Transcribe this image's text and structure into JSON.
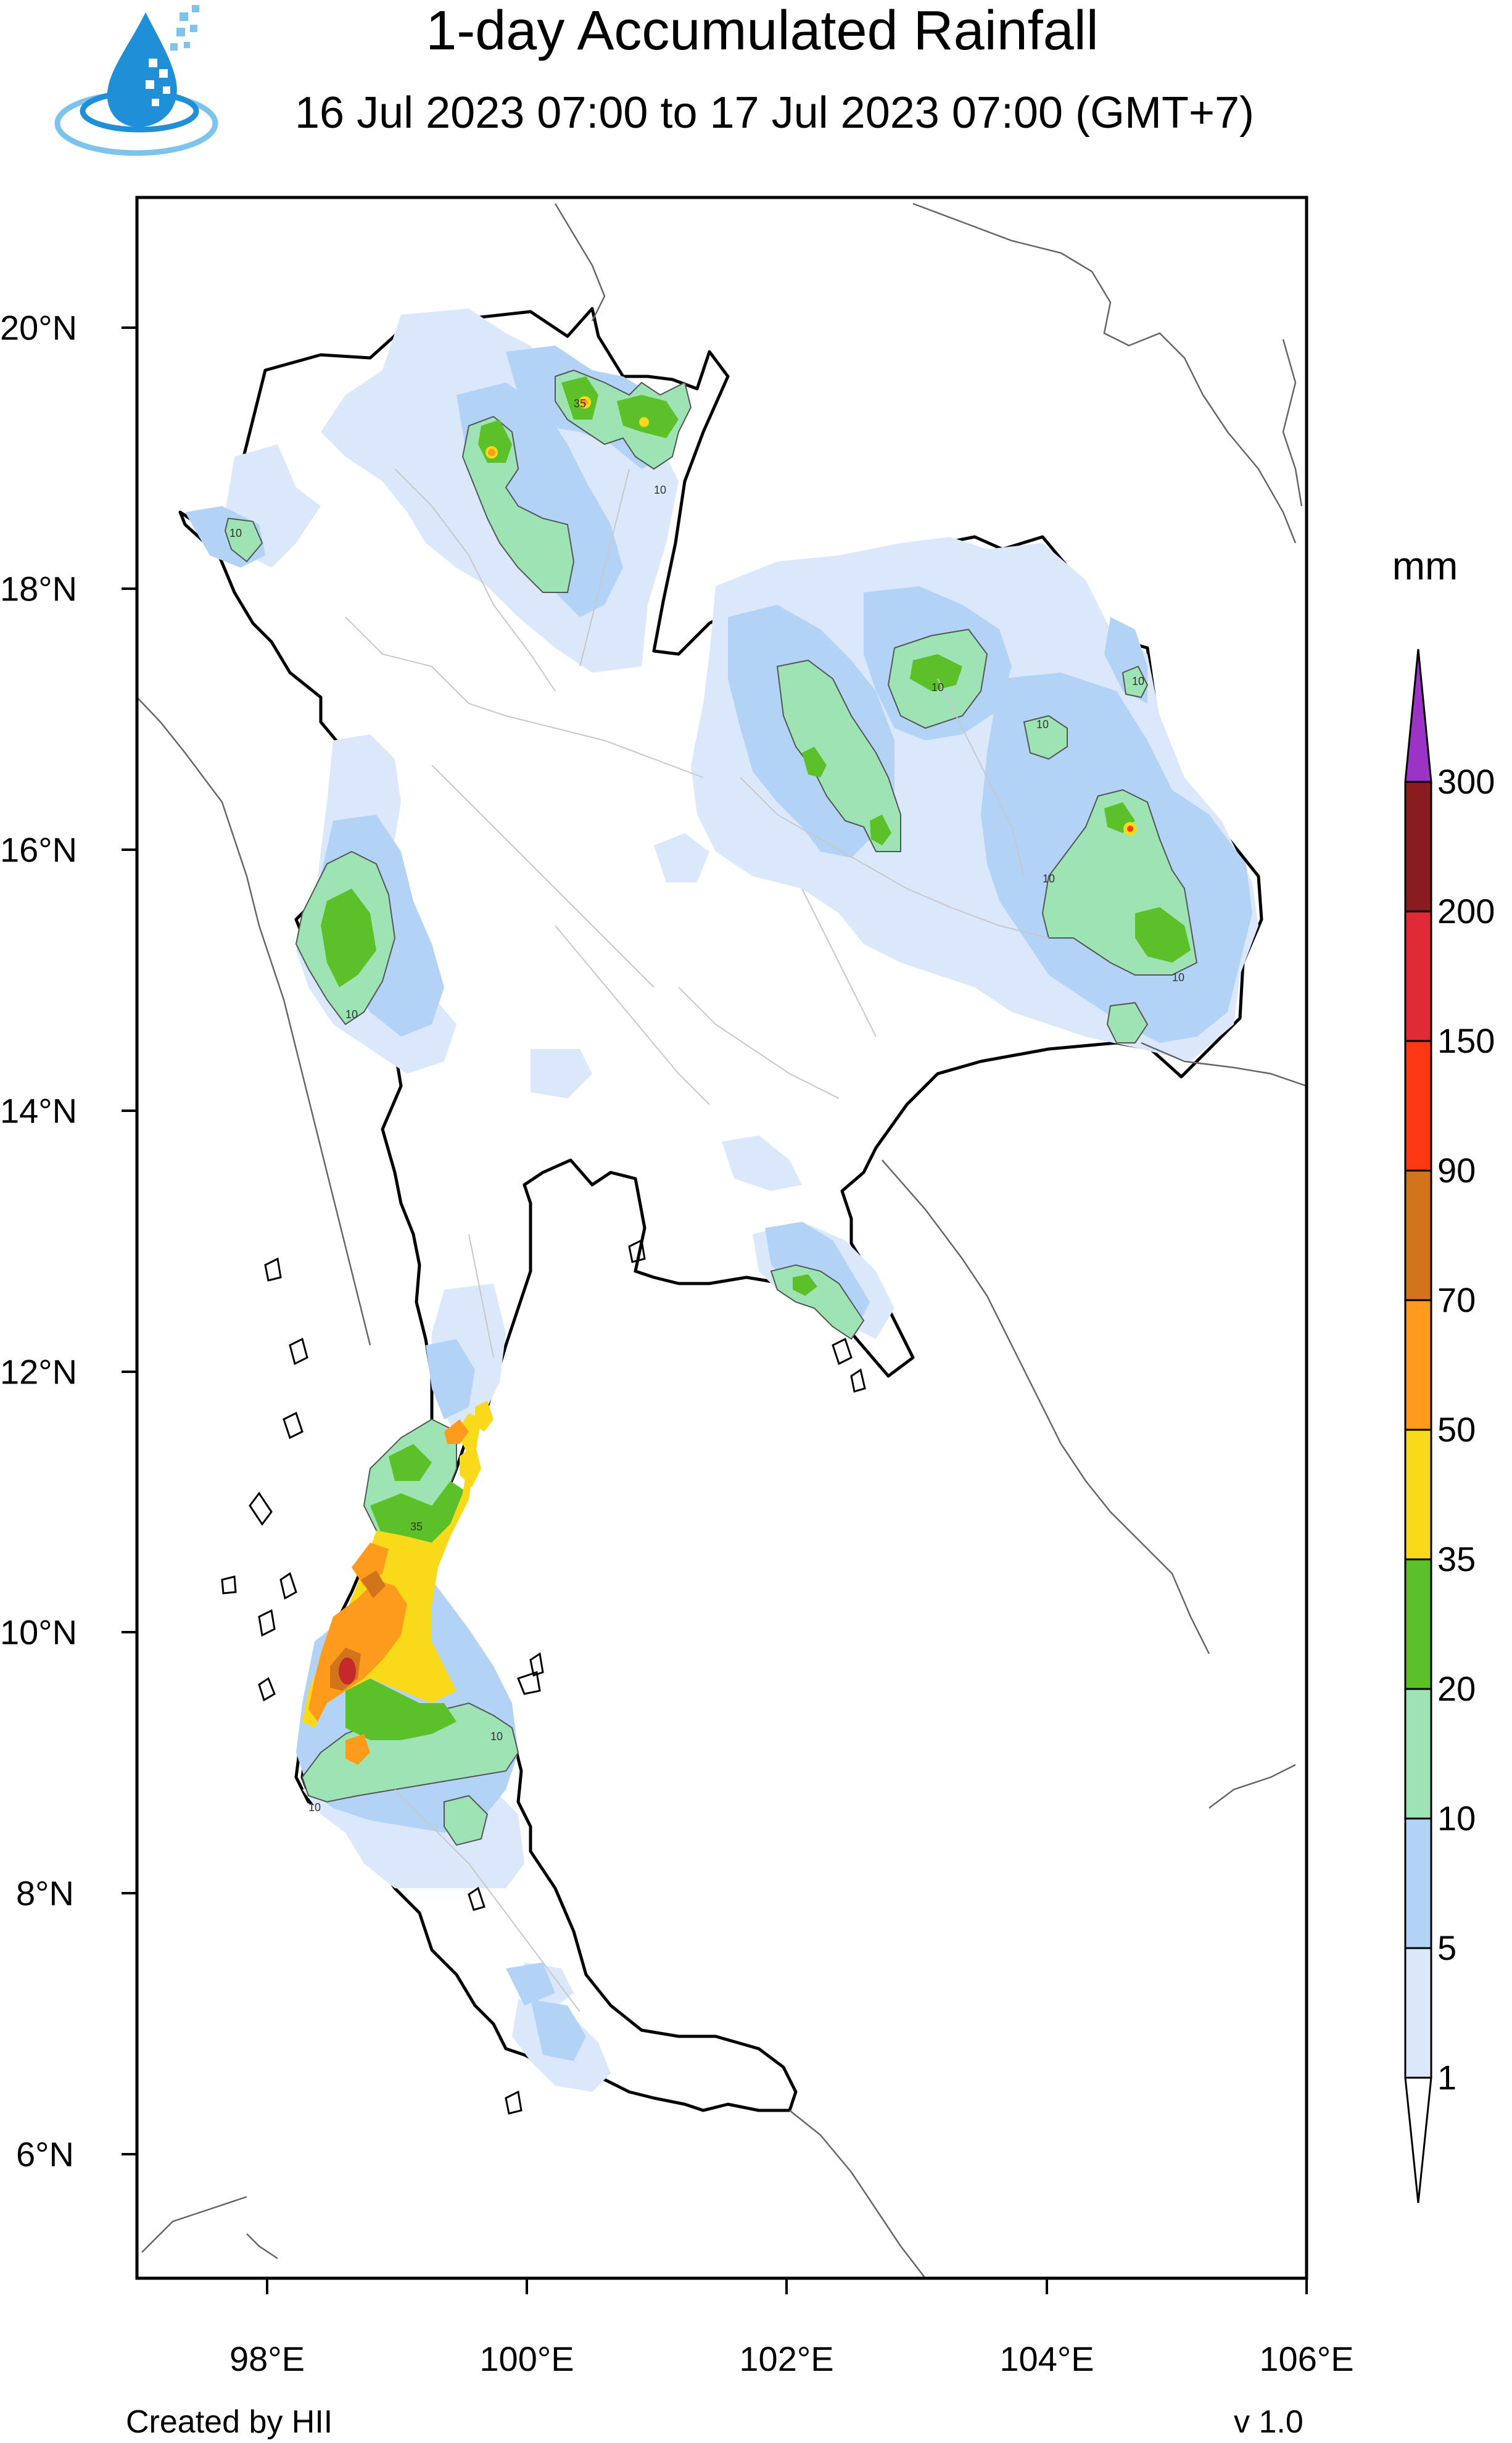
{
  "title": "1-day Accumulated Rainfall",
  "subtitle": "16 Jul 2023 07:00 to 17 Jul 2023 07:00 (GMT+7)",
  "logo": {
    "icon": "water-drop-icon",
    "colors": [
      "#1f8fd8",
      "#0b5fa8",
      "#7cc3ee"
    ]
  },
  "colorbar": {
    "unit": "mm",
    "levels": [
      "1",
      "5",
      "10",
      "20",
      "35",
      "50",
      "70",
      "90",
      "150",
      "200",
      "300"
    ],
    "colors": [
      "#ffffff",
      "#dbe8fb",
      "#b2d2f6",
      "#9ee3b3",
      "#5cc128",
      "#f8da1a",
      "#fe9b1c",
      "#d2741c",
      "#ff3814",
      "#e02a36",
      "#8a1c20",
      "#9b34c6"
    ]
  },
  "axes": {
    "x_ticks": [
      "98°E",
      "100°E",
      "102°E",
      "104°E",
      "106°E"
    ],
    "y_ticks": [
      "20°N",
      "18°N",
      "16°N",
      "14°N",
      "12°N",
      "10°N",
      "8°N",
      "6°N"
    ],
    "lon_range": [
      97.0,
      106.0
    ],
    "lat_range": [
      5.0,
      20.9
    ]
  },
  "contour_labels": [
    "10",
    "35"
  ],
  "footer": {
    "credit": "Created by HII",
    "version": "v 1.0"
  }
}
